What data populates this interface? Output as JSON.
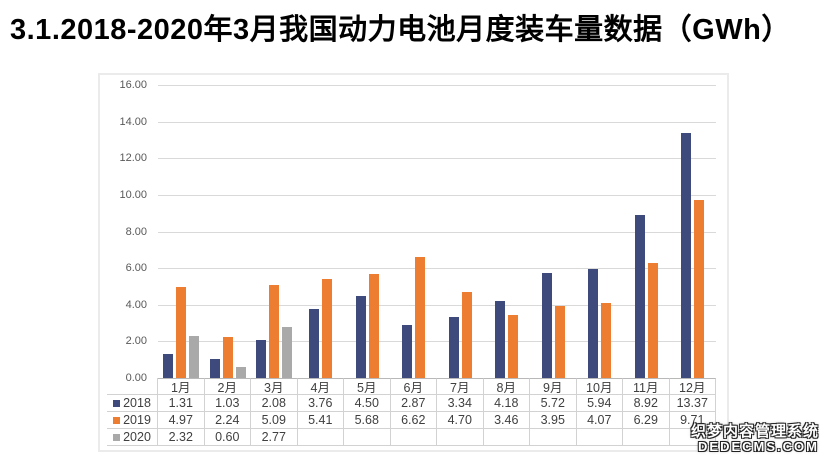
{
  "title": "3.1.2018-2020年3月我国动力电池月度装车量数据（GWh）",
  "chart_data": {
    "type": "bar",
    "title": "2018-2020年3月我国动力电池月度装车量数据",
    "unit": "GWh",
    "categories": [
      "1月",
      "2月",
      "3月",
      "4月",
      "5月",
      "6月",
      "7月",
      "8月",
      "9月",
      "10月",
      "11月",
      "12月"
    ],
    "series": [
      {
        "name": "2018",
        "color": "#3E4A7B",
        "values": [
          1.31,
          1.03,
          2.08,
          3.76,
          4.5,
          2.87,
          3.34,
          4.18,
          5.72,
          5.94,
          8.92,
          13.37
        ]
      },
      {
        "name": "2019",
        "color": "#ED7D31",
        "values": [
          4.97,
          2.24,
          5.09,
          5.41,
          5.68,
          6.62,
          4.7,
          3.46,
          3.95,
          4.07,
          6.29,
          9.71
        ]
      },
      {
        "name": "2020",
        "color": "#A9A9A9",
        "values": [
          2.32,
          0.6,
          2.77,
          null,
          null,
          null,
          null,
          null,
          null,
          null,
          null,
          null
        ]
      }
    ],
    "ylim": [
      0,
      16
    ],
    "ytick_step": 2,
    "yticks": [
      "16.00",
      "14.00",
      "12.00",
      "10.00",
      "8.00",
      "6.00",
      "4.00",
      "2.00",
      "0.00"
    ],
    "grid": true,
    "legend_position": "table-left",
    "xlabel": "",
    "ylabel": ""
  },
  "watermark": {
    "line1": "织梦内容管理系统",
    "line2": "DEDECMS.COM"
  }
}
